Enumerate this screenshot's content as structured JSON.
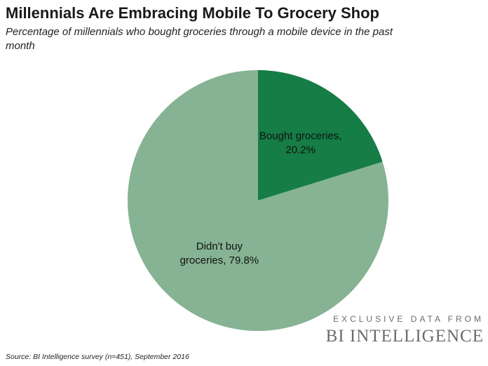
{
  "header": {
    "title": "Millennials Are Embracing Mobile To Grocery Shop",
    "subtitle": "Percentage of millennials who bought groceries through a mobile device in the past month"
  },
  "chart_data": {
    "type": "pie",
    "title": "Millennials Are Embracing Mobile To Grocery Shop",
    "subtitle": "Percentage of millennials who bought groceries through a mobile device in the past month",
    "slices": [
      {
        "label_lines": [
          "Bought groceries,",
          "20.2%"
        ],
        "category": "Bought groceries",
        "value": 20.2,
        "color": "#157d45"
      },
      {
        "label_lines": [
          "Didn't buy",
          "groceries, 79.8%"
        ],
        "category": "Didn't buy groceries",
        "value": 79.8,
        "color": "#86b393"
      }
    ],
    "start_angle_deg": 0,
    "direction": "clockwise",
    "legend": "none"
  },
  "footer": {
    "source": "Source: BI Intelligence survey (n=451), September 2016",
    "brand_tagline": "EXCLUSIVE DATA FROM",
    "brand_name": "BI INTELLIGENCE"
  }
}
